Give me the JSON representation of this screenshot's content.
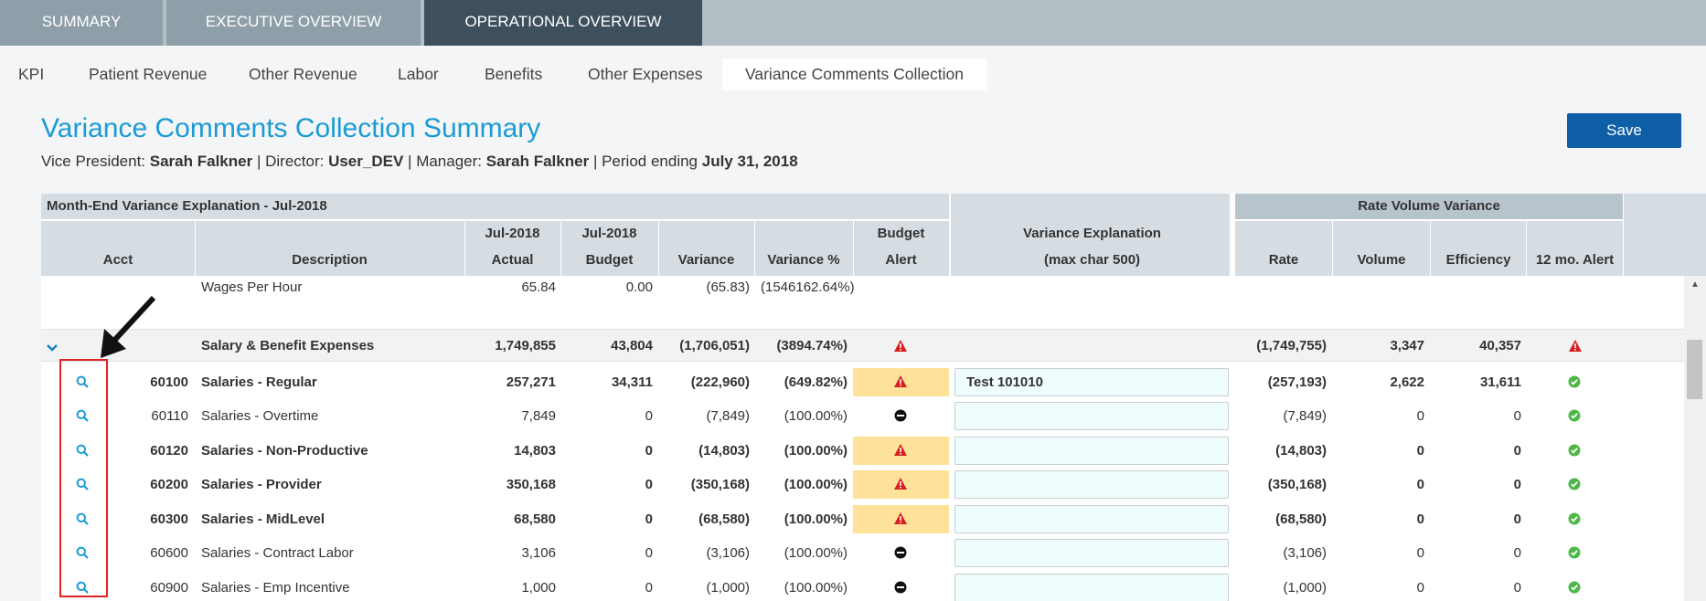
{
  "top_tabs": [
    "SUMMARY",
    "EXECUTIVE OVERVIEW",
    "OPERATIONAL OVERVIEW"
  ],
  "sub_tabs": [
    "KPI",
    "Patient Revenue",
    "Other Revenue",
    "Labor",
    "Benefits",
    "Other Expenses",
    "Variance Comments Collection"
  ],
  "page": {
    "title": "Variance Comments Collection Summary",
    "save_label": "Save",
    "vp_label": "Vice President:",
    "vp": "Sarah Falkner",
    "director_label": "Director:",
    "director": "User_DEV",
    "manager_label": "Manager:",
    "manager": "Sarah Falkner",
    "period_label": "Period ending",
    "period": "July 31, 2018",
    "sep": "|"
  },
  "table": {
    "group_header": "Month-End Variance Explanation - Jul-2018",
    "rv_header": "Rate Volume Variance",
    "columns": {
      "acct": "Acct",
      "desc": "Description",
      "actual_top": "Jul-2018",
      "actual": "Actual",
      "budget_top": "Jul-2018",
      "budget": "Budget",
      "variance": "Variance",
      "variance_pct": "Variance %",
      "alert_top": "Budget",
      "alert": "Alert",
      "explain_top": "Variance Explanation",
      "explain": "(max char 500)",
      "rate": "Rate",
      "volume": "Volume",
      "efficiency": "Efficiency",
      "alert12": "12 mo. Alert"
    },
    "partial_row": {
      "desc": "Wages Per Hour",
      "actual": "65.84",
      "budget": "0.00",
      "variance": "(65.83)",
      "variance_pct": "(1546162.64%)"
    },
    "group_row": {
      "desc": "Salary & Benefit Expenses",
      "actual": "1,749,855",
      "budget": "43,804",
      "variance": "(1,706,051)",
      "variance_pct": "(3894.74%)",
      "rate": "(1,749,755)",
      "volume": "3,347",
      "efficiency": "40,357"
    },
    "rows": [
      {
        "acct": "60100",
        "desc": "Salaries - Regular",
        "actual": "257,271",
        "budget": "34,311",
        "variance": "(222,960)",
        "variance_pct": "(649.82%)",
        "alert": "warning",
        "explanation": "Test 101010",
        "rate": "(257,193)",
        "volume": "2,622",
        "efficiency": "31,611",
        "bold": true
      },
      {
        "acct": "60110",
        "desc": "Salaries - Overtime",
        "actual": "7,849",
        "budget": "0",
        "variance": "(7,849)",
        "variance_pct": "(100.00%)",
        "alert": "minus",
        "explanation": "",
        "rate": "(7,849)",
        "volume": "0",
        "efficiency": "0",
        "bold": false
      },
      {
        "acct": "60120",
        "desc": "Salaries - Non-Productive",
        "actual": "14,803",
        "budget": "0",
        "variance": "(14,803)",
        "variance_pct": "(100.00%)",
        "alert": "warning",
        "explanation": "",
        "rate": "(14,803)",
        "volume": "0",
        "efficiency": "0",
        "bold": true
      },
      {
        "acct": "60200",
        "desc": "Salaries - Provider",
        "actual": "350,168",
        "budget": "0",
        "variance": "(350,168)",
        "variance_pct": "(100.00%)",
        "alert": "warning",
        "explanation": "",
        "rate": "(350,168)",
        "volume": "0",
        "efficiency": "0",
        "bold": true
      },
      {
        "acct": "60300",
        "desc": "Salaries - MidLevel",
        "actual": "68,580",
        "budget": "0",
        "variance": "(68,580)",
        "variance_pct": "(100.00%)",
        "alert": "warning",
        "explanation": "",
        "rate": "(68,580)",
        "volume": "0",
        "efficiency": "0",
        "bold": true
      },
      {
        "acct": "60600",
        "desc": "Salaries - Contract Labor",
        "actual": "3,106",
        "budget": "0",
        "variance": "(3,106)",
        "variance_pct": "(100.00%)",
        "alert": "minus",
        "explanation": "",
        "rate": "(3,106)",
        "volume": "0",
        "efficiency": "0",
        "bold": false
      },
      {
        "acct": "60900",
        "desc": "Salaries - Emp Incentive",
        "actual": "1,000",
        "budget": "0",
        "variance": "(1,000)",
        "variance_pct": "(100.00%)",
        "alert": "minus",
        "explanation": "",
        "rate": "(1,000)",
        "volume": "0",
        "efficiency": "0",
        "bold": false
      }
    ]
  },
  "colors": {
    "accent": "#1a9bd5",
    "save": "#0f5fa8",
    "alert_bg": "#ffe29a",
    "warning": "#d71f1f",
    "ok": "#4cb848",
    "highlight_box": "#e02424"
  }
}
